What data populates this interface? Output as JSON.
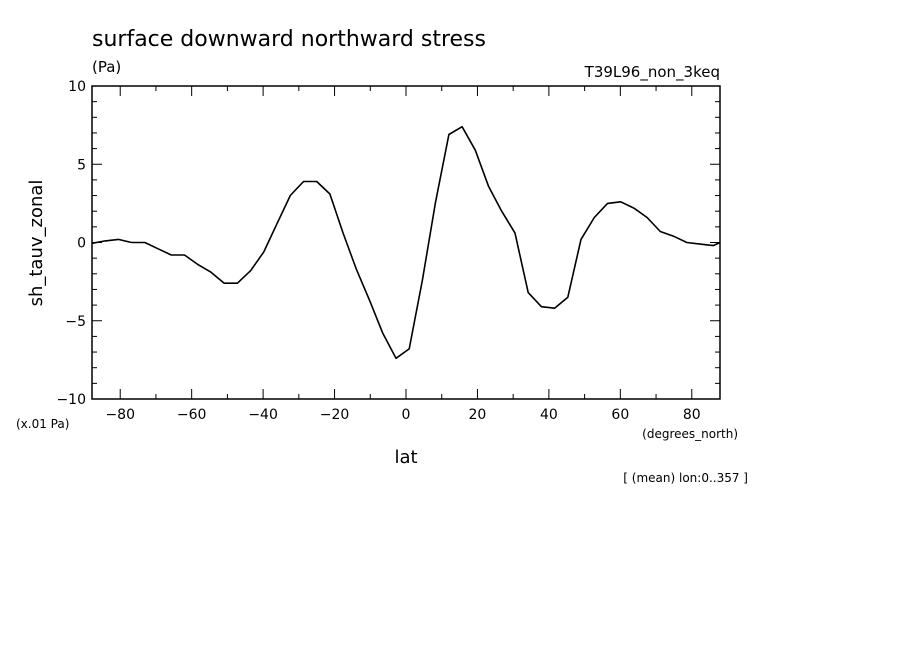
{
  "chart_data": {
    "type": "line",
    "title": "surface downward northward stress",
    "units": "(Pa)",
    "run_label": "T39L96_non_3keq",
    "ylabel": "sh_tauv_zonal",
    "yscale_note": "(x.01 Pa)",
    "xlabel": "lat",
    "xunits": "(degrees_north)",
    "footnote": "[ (mean) lon:0..357 ]",
    "xlim": [
      -87.9,
      87.9
    ],
    "ylim": [
      -10,
      10
    ],
    "x_ticks": [
      -80,
      -60,
      -40,
      -20,
      0,
      20,
      40,
      60,
      80
    ],
    "y_ticks": [
      -10,
      -5,
      0,
      5,
      10
    ],
    "series": [
      {
        "color": "#000000",
        "x": [
          -87.9,
          -84.2,
          -80.5,
          -76.8,
          -73.1,
          -69.4,
          -65.7,
          -62.0,
          -58.3,
          -54.6,
          -50.9,
          -47.2,
          -43.5,
          -39.8,
          -36.1,
          -32.4,
          -28.7,
          -25.0,
          -21.3,
          -17.6,
          -13.9,
          -10.2,
          -6.5,
          -2.8,
          0.9,
          4.6,
          8.3,
          12.0,
          15.7,
          19.4,
          23.1,
          26.8,
          30.5,
          34.2,
          37.9,
          41.6,
          45.3,
          49.0,
          52.7,
          56.4,
          60.1,
          63.8,
          67.5,
          71.2,
          74.9,
          78.6,
          82.3,
          86.0,
          87.9
        ],
        "y": [
          -0.05,
          0.1,
          0.2,
          0.0,
          0.0,
          -0.4,
          -0.8,
          -0.8,
          -1.4,
          -1.9,
          -2.6,
          -2.6,
          -1.8,
          -0.6,
          1.2,
          3.0,
          3.9,
          3.9,
          3.1,
          0.6,
          -1.7,
          -3.7,
          -5.8,
          -7.4,
          -6.8,
          -2.4,
          2.6,
          6.9,
          7.4,
          5.9,
          3.6,
          2.0,
          0.6,
          -3.2,
          -4.1,
          -4.2,
          -3.5,
          0.2,
          1.6,
          2.5,
          2.6,
          2.2,
          1.6,
          0.7,
          0.4,
          0.0,
          -0.1,
          -0.2,
          0.0
        ]
      }
    ]
  }
}
